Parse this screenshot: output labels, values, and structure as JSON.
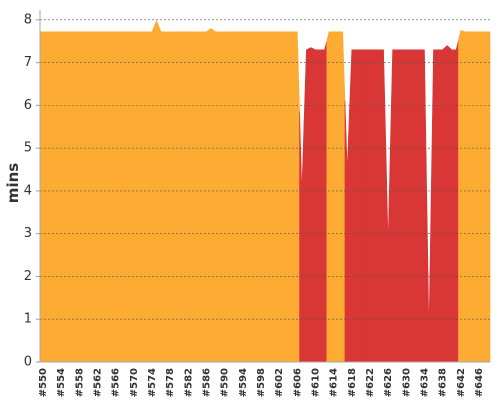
{
  "chart_data": {
    "type": "area",
    "y_label": "mins",
    "categories": [
      "#550",
      null,
      null,
      null,
      "#554",
      null,
      null,
      null,
      "#558",
      null,
      null,
      null,
      "#562",
      null,
      null,
      null,
      "#566",
      null,
      null,
      null,
      "#570",
      null,
      null,
      null,
      "#574",
      null,
      null,
      null,
      "#578",
      null,
      null,
      null,
      "#582",
      null,
      null,
      null,
      "#586",
      null,
      null,
      null,
      "#590",
      null,
      null,
      null,
      "#594",
      null,
      null,
      null,
      "#598",
      null,
      null,
      null,
      "#602",
      null,
      null,
      null,
      "#606",
      null,
      null,
      null,
      "#610",
      null,
      null,
      null,
      "#614",
      null,
      null,
      null,
      "#618",
      null,
      null,
      null,
      "#622",
      null,
      null,
      null,
      "#626",
      null,
      null,
      null,
      "#630",
      null,
      null,
      null,
      "#634",
      null,
      null,
      null,
      "#638",
      null,
      null,
      null,
      "#642",
      null,
      null,
      null,
      "#646",
      null,
      null
    ],
    "values": [
      7.72,
      7.72,
      7.72,
      7.72,
      7.72,
      7.72,
      7.72,
      7.72,
      7.72,
      7.72,
      7.72,
      7.72,
      7.72,
      7.72,
      7.72,
      7.72,
      7.72,
      7.72,
      7.72,
      7.72,
      7.72,
      7.72,
      7.72,
      7.72,
      7.72,
      7.98,
      7.72,
      7.72,
      7.72,
      7.72,
      7.72,
      7.72,
      7.72,
      7.72,
      7.72,
      7.72,
      7.72,
      7.8,
      7.72,
      7.72,
      7.72,
      7.72,
      7.72,
      7.72,
      7.72,
      7.72,
      7.72,
      7.72,
      7.72,
      7.72,
      7.72,
      7.72,
      7.72,
      7.72,
      7.72,
      7.72,
      7.72,
      4.0,
      7.3,
      7.35,
      7.3,
      7.3,
      7.3,
      7.72,
      7.72,
      7.72,
      7.72,
      4.5,
      7.3,
      7.3,
      7.3,
      7.3,
      7.3,
      7.3,
      7.3,
      7.3,
      2.8,
      7.3,
      7.3,
      7.3,
      7.3,
      7.3,
      7.3,
      7.3,
      7.3,
      0.7,
      7.3,
      7.3,
      7.3,
      7.4,
      7.3,
      7.3,
      7.75,
      7.72,
      7.72,
      7.72,
      7.72,
      7.72,
      7.72
    ],
    "point_colors": [
      "#fcab33",
      "#fcab33",
      "#fcab33",
      "#fcab33",
      "#fcab33",
      "#fcab33",
      "#fcab33",
      "#fcab33",
      "#fcab33",
      "#fcab33",
      "#fcab33",
      "#fcab33",
      "#fcab33",
      "#fcab33",
      "#fcab33",
      "#fcab33",
      "#fcab33",
      "#fcab33",
      "#fcab33",
      "#fcab33",
      "#fcab33",
      "#fcab33",
      "#fcab33",
      "#fcab33",
      "#fcab33",
      "#fcab33",
      "#fcab33",
      "#fcab33",
      "#fcab33",
      "#fcab33",
      "#fcab33",
      "#fcab33",
      "#fcab33",
      "#fcab33",
      "#fcab33",
      "#fcab33",
      "#fcab33",
      "#fcab33",
      "#fcab33",
      "#fcab33",
      "#fcab33",
      "#fcab33",
      "#fcab33",
      "#fcab33",
      "#fcab33",
      "#fcab33",
      "#fcab33",
      "#fcab33",
      "#fcab33",
      "#fcab33",
      "#fcab33",
      "#fcab33",
      "#fcab33",
      "#fcab33",
      "#fcab33",
      "#fcab33",
      "#fcab33",
      "#d93636",
      "#d93636",
      "#d93636",
      "#d93636",
      "#d93636",
      "#d93636",
      "#fcab33",
      "#fcab33",
      "#fcab33",
      "#fcab33",
      "#d93636",
      "#d93636",
      "#d93636",
      "#d93636",
      "#d93636",
      "#d93636",
      "#d93636",
      "#d93636",
      "#d93636",
      "#d93636",
      "#d93636",
      "#d93636",
      "#d93636",
      "#d93636",
      "#d93636",
      "#d93636",
      "#d93636",
      "#d93636",
      "#d93636",
      "#d93636",
      "#d93636",
      "#d93636",
      "#d93636",
      "#d93636",
      "#d93636",
      "#fcab33",
      "#fcab33",
      "#fcab33",
      "#fcab33",
      "#fcab33",
      "#fcab33",
      "#fcab33"
    ],
    "ylim": [
      0,
      8.23
    ],
    "yticks": [
      0,
      1,
      2,
      3,
      4,
      5,
      6,
      7,
      8
    ],
    "grid": true
  }
}
